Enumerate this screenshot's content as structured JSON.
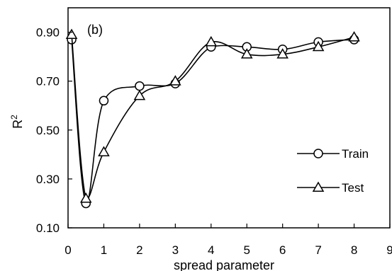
{
  "chart_data": {
    "type": "line",
    "panel_label": "(b)",
    "xlabel": "spread parameter",
    "ylabel": "R",
    "ylabel_superscript": "2",
    "xlim": [
      0,
      9
    ],
    "ylim": [
      0.1,
      1.0
    ],
    "xticks": [
      0,
      1,
      2,
      3,
      4,
      5,
      6,
      7,
      8,
      9
    ],
    "xtick_labels": [
      "0",
      "1",
      "2",
      "3",
      "4",
      "5",
      "6",
      "7",
      "8",
      "9"
    ],
    "yticks": [
      0.1,
      0.3,
      0.5,
      0.7,
      0.9
    ],
    "ytick_labels": [
      "0.10",
      "0.30",
      "0.50",
      "0.70",
      "0.90"
    ],
    "grid": false,
    "legend_position": "bottom-right",
    "series": [
      {
        "name": "Train",
        "marker": "circle",
        "x": [
          0.1,
          0.5,
          1,
          2,
          3,
          4,
          5,
          6,
          7,
          8
        ],
        "y": [
          0.87,
          0.2,
          0.62,
          0.68,
          0.69,
          0.84,
          0.84,
          0.83,
          0.86,
          0.87
        ]
      },
      {
        "name": "Test",
        "marker": "triangle",
        "x": [
          0.1,
          0.5,
          1,
          2,
          3,
          4,
          5,
          6,
          7,
          8
        ],
        "y": [
          0.89,
          0.22,
          0.41,
          0.64,
          0.7,
          0.86,
          0.81,
          0.81,
          0.84,
          0.88
        ]
      }
    ]
  }
}
